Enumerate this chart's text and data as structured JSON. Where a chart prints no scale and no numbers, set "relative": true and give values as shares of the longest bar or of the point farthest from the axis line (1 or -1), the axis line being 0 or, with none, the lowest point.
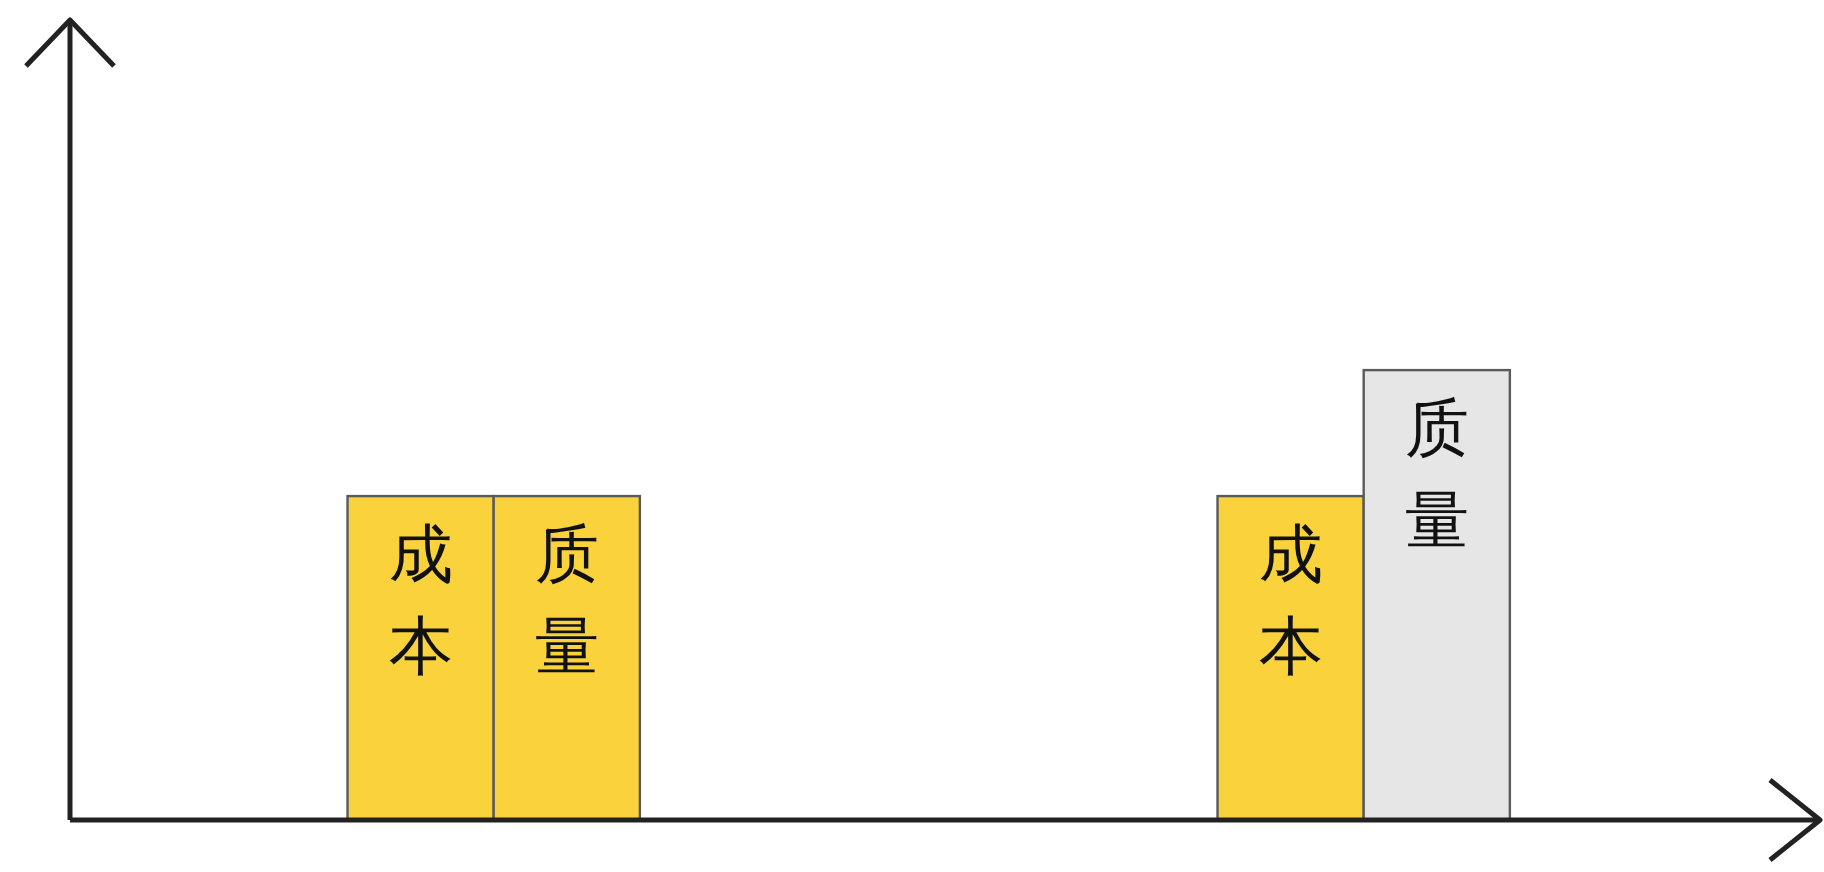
{
  "chart_data": {
    "type": "bar",
    "relative": true,
    "categories": [
      null,
      null
    ],
    "series": [
      {
        "name": "成本",
        "color": "#f9d23c",
        "values": [
          0.72,
          0.72
        ]
      },
      {
        "name": "质量",
        "colors": [
          "#f9d23c",
          "#e6e6e6"
        ],
        "values": [
          0.72,
          1
        ]
      }
    ]
  }
}
